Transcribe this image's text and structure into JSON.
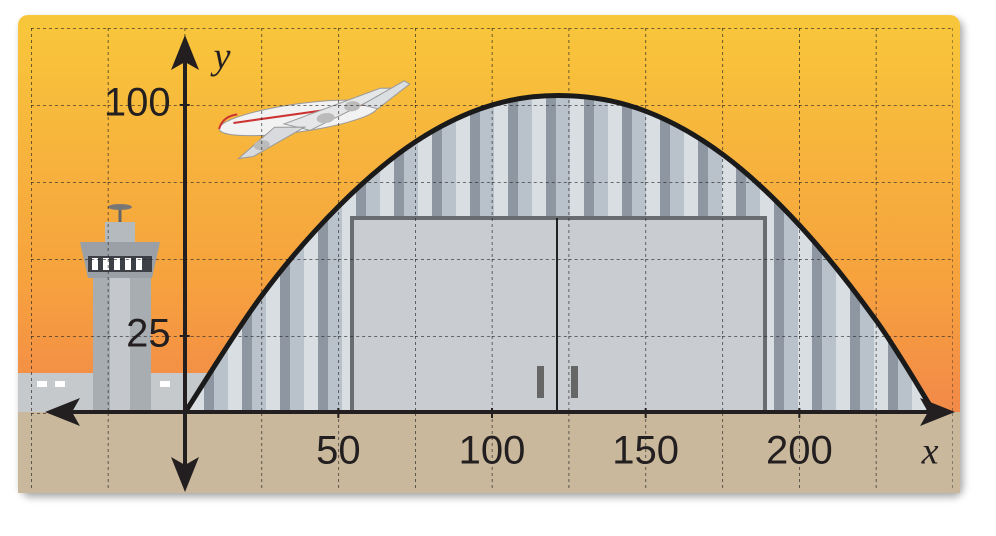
{
  "chart_data": {
    "type": "line",
    "x_label": "x",
    "y_label": "y",
    "x": [
      0,
      25,
      50,
      75,
      100,
      125,
      150,
      175,
      200,
      225,
      244
    ],
    "series": [
      {
        "name": "hangar arch",
        "color": "#1a1a1a",
        "values": [
          0,
          38,
          67,
          88,
          100,
          103,
          98,
          84,
          61,
          30,
          0
        ]
      }
    ],
    "xlim": [
      -50,
      250
    ],
    "ylim": [
      -25,
      125
    ],
    "xticks": [
      50,
      100,
      150,
      200
    ],
    "yticks": [
      25,
      100
    ],
    "grid": true
  }
}
